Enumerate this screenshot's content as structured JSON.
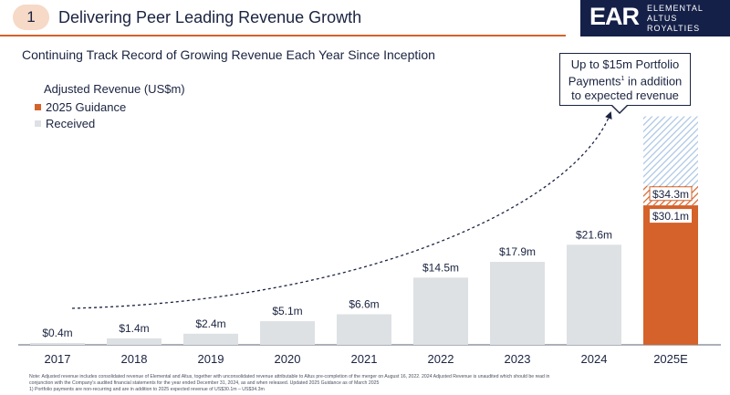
{
  "header": {
    "section_number": "1",
    "title": "Delivering Peer Leading Revenue Growth"
  },
  "logo": {
    "mark": "EAR",
    "line1": "ELEMENTAL",
    "line2": "ALTUS",
    "line3": "ROYALTIES"
  },
  "subtitle": "Continuing Track Record of Growing Revenue Each Year Since Inception",
  "callout": {
    "line1": "Up to $15m Portfolio",
    "line2a": "Payments",
    "line2_sup": "1",
    "line2b": " in addition",
    "line3": "to expected revenue"
  },
  "chart_data": {
    "type": "bar",
    "title": "Adjusted Revenue (US$m)",
    "legend": [
      {
        "label": "2025 Guidance",
        "color": "#d4622a"
      },
      {
        "label": "Received",
        "color": "#dde1e4"
      }
    ],
    "categories": [
      "2017",
      "2018",
      "2019",
      "2020",
      "2021",
      "2022",
      "2023",
      "2024",
      "2025E"
    ],
    "values": [
      0.4,
      1.4,
      2.4,
      5.1,
      6.6,
      14.5,
      17.9,
      21.6,
      null
    ],
    "value_labels": [
      "$0.4m",
      "$1.4m",
      "$2.4m",
      "$5.1m",
      "$6.6m",
      "$14.5m",
      "$17.9m",
      "$21.6m",
      ""
    ],
    "guidance": {
      "low": 30.1,
      "high": 34.3,
      "low_label": "$30.1m",
      "high_label": "$34.3m",
      "portfolio_payments_upper": 49.3
    },
    "ylim": [
      0,
      50
    ],
    "colors": {
      "received": "#dde1e4",
      "guidance": "#d4622a",
      "hatch": "#a9c4e4",
      "axis": "#5a6070",
      "text": "#1a2340"
    }
  },
  "footnote": {
    "line1": "Note: Adjusted revenue includes consolidated revenue of Elemental and Altus, together with unconsolidated revenue attributable to Altus pre-completion of the merger on August 16, 2022. 2024 Adjusted Revenue is unaudited which should be read in",
    "line2": "conjunction with the Company's audited financial statements for the year ended December 31, 2024, as and when released. Updated 2025 Guidance as of March 2025",
    "line3": "1)        Portfolio payments are non-recurring and are in addition to 2025 expected revenue of US$30.1m – US$34.3m"
  }
}
